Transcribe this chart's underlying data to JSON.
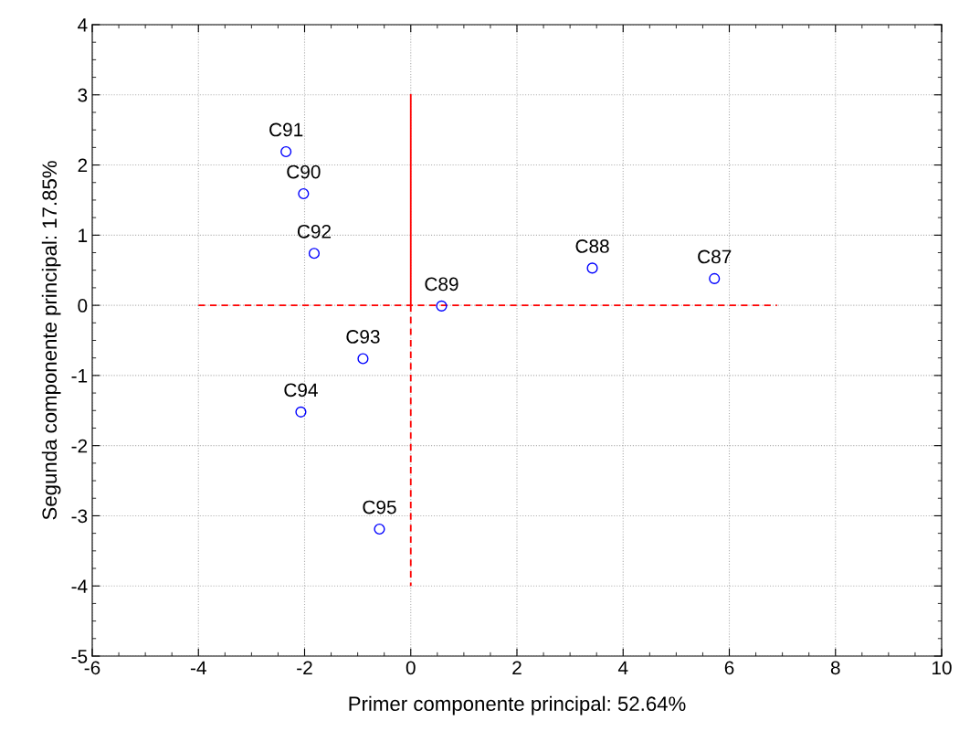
{
  "chart_data": {
    "type": "scatter",
    "xlabel": "Primer componente principal: 52.64%",
    "ylabel": "Segunda componente principal: 17.85%",
    "xlim": [
      -6,
      10
    ],
    "ylim": [
      -5,
      4
    ],
    "xticks": [
      -6,
      -4,
      -2,
      0,
      2,
      4,
      6,
      8,
      10
    ],
    "yticks": [
      -5,
      -4,
      -3,
      -2,
      -1,
      0,
      1,
      2,
      3,
      4
    ],
    "grid": true,
    "marker": "circle",
    "series": [
      {
        "color": "#0000ff",
        "x": [
          -2.35,
          -2.02,
          -1.82,
          0.58,
          3.42,
          5.72,
          -0.9,
          -2.07,
          -0.59
        ],
        "values": [
          2.19,
          1.59,
          0.74,
          -0.01,
          0.53,
          0.38,
          -0.76,
          -1.52,
          -3.19
        ]
      },
      {
        "type": "line",
        "color": "#ff0000",
        "line_style": "dashed",
        "marker": "none",
        "x": [
          -4,
          6.9
        ],
        "values": [
          0,
          0
        ]
      },
      {
        "type": "line",
        "color": "#ff0000",
        "line_style": "solid",
        "marker": "none",
        "x": [
          0,
          0
        ],
        "values": [
          3,
          0
        ]
      },
      {
        "type": "line",
        "color": "#ff0000",
        "line_style": "dashed",
        "marker": "none",
        "x": [
          0,
          0
        ],
        "values": [
          0,
          -4
        ]
      }
    ],
    "annotations": [
      {
        "text": "C91",
        "x": -2.35,
        "y": 2.19
      },
      {
        "text": "C90",
        "x": -2.02,
        "y": 1.59
      },
      {
        "text": "C92",
        "x": -1.82,
        "y": 0.74
      },
      {
        "text": "C89",
        "x": 0.58,
        "y": -0.01
      },
      {
        "text": "C88",
        "x": 3.42,
        "y": 0.53
      },
      {
        "text": "C87",
        "x": 5.72,
        "y": 0.38
      },
      {
        "text": "C93",
        "x": -0.9,
        "y": -0.76
      },
      {
        "text": "C94",
        "x": -2.07,
        "y": -1.52
      },
      {
        "text": "C95",
        "x": -0.59,
        "y": -3.19
      }
    ]
  }
}
